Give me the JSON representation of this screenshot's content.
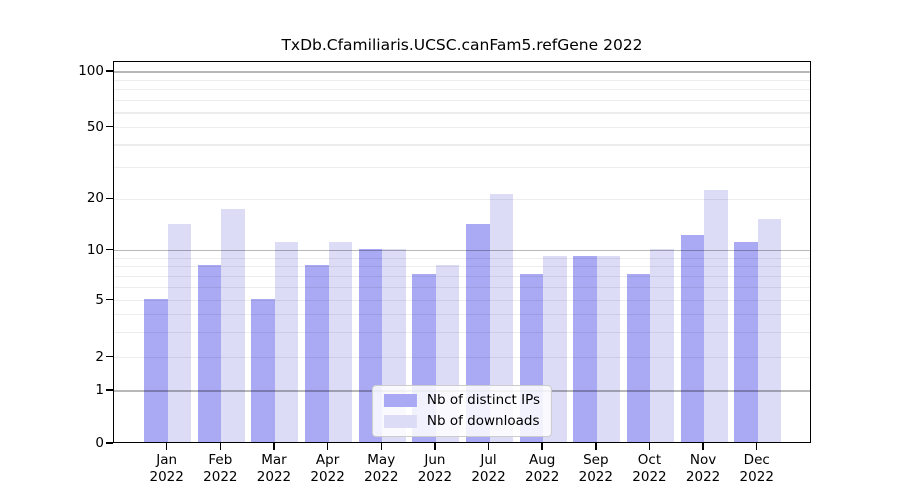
{
  "title": "TxDb.Cfamiliaris.UCSC.canFam5.refGene 2022",
  "chart_data": {
    "type": "bar",
    "categories": [
      "Jan",
      "Feb",
      "Mar",
      "Apr",
      "May",
      "Jun",
      "Jul",
      "Aug",
      "Sep",
      "Oct",
      "Nov",
      "Dec"
    ],
    "category_year": "2022",
    "series": [
      {
        "name": "Nb of distinct IPs",
        "color": "#a9a9f4",
        "values": [
          5,
          8,
          5,
          8,
          10,
          7,
          14,
          7,
          9,
          7,
          12,
          11
        ]
      },
      {
        "name": "Nb of downloads",
        "color": "#dcdcf6",
        "values": [
          14,
          17,
          11,
          11,
          10,
          8,
          21,
          9,
          9,
          10,
          22,
          15
        ]
      }
    ],
    "title": "TxDb.Cfamiliaris.UCSC.canFam5.refGene 2022",
    "xlabel": "",
    "ylabel": "",
    "yscale": "log-with-zero",
    "yticks": [
      0,
      1,
      2,
      5,
      10,
      20,
      50,
      100
    ],
    "major_gridlines": [
      1,
      10,
      100
    ],
    "minor_gridlines": [
      2,
      3,
      4,
      5,
      6,
      7,
      8,
      9,
      20,
      30,
      40,
      50,
      60,
      70,
      80,
      90
    ],
    "ylim": [
      0,
      110
    ],
    "grid": "horizontal",
    "legend_position": "lower center"
  }
}
